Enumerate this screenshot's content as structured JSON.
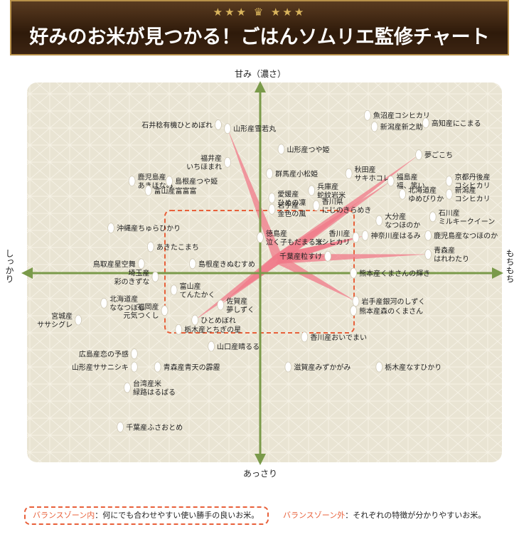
{
  "header": {
    "decoration": "★★★ ♛ ★★★",
    "title": "好みのお米が見つかる！ごはんソムリエ監修チャート"
  },
  "axes": {
    "top": "甘み（濃さ）",
    "bottom": "あっさり",
    "left": "しっかり",
    "right": "もちもち"
  },
  "legend": {
    "inside_key": "バランスゾーン内",
    "inside_text": "：何にでも合わせやすい使い勝手の良いお米。",
    "outside_key": "バランスゾーン外",
    "outside_text": "：それぞれの特徴が分かりやすいお米。"
  },
  "colors": {
    "x_axis": "#7a9a4a",
    "y_axis": "#7a9a4a",
    "balance_zone": "#e8603a",
    "ray": "#f07a88",
    "bg": "#e9e4d3",
    "header": "#3a220e"
  },
  "chart_data": {
    "type": "scatter",
    "x_label_left": "しっかり",
    "x_label_right": "もちもち",
    "y_label_top": "甘み（濃さ）",
    "y_label_bottom": "あっさり",
    "xlim": [
      -10,
      10
    ],
    "ylim": [
      -10,
      10
    ],
    "balance_zone": {
      "x": [
        -4.3,
        4.3
      ],
      "y": [
        -3.8,
        2.3
      ]
    },
    "points": [
      {
        "label": "石井稔有機ひとめぼれ",
        "x": -1.8,
        "y": 7.9,
        "label_pos": "left",
        "ray": false
      },
      {
        "label": "山形産雪若丸",
        "x": -1.4,
        "y": 7.7,
        "label_pos": "right",
        "ray": true
      },
      {
        "label": "山形産つや姫",
        "x": 0.9,
        "y": 6.6,
        "label_pos": "right",
        "ray": false
      },
      {
        "label": "福井産\nいちほまれ",
        "x": -1.4,
        "y": 5.9,
        "label_pos": "left",
        "ray": false
      },
      {
        "label": "群馬産小松姫",
        "x": 0.4,
        "y": 5.3,
        "label_pos": "right",
        "ray": false
      },
      {
        "label": "鹿児島産\nあきほなみ",
        "x": -5.5,
        "y": 4.9,
        "label_pos": "right",
        "ray": false
      },
      {
        "label": "島根産つや姫",
        "x": -3.9,
        "y": 4.9,
        "label_pos": "right",
        "ray": false
      },
      {
        "label": "富山産富富富",
        "x": -4.8,
        "y": 4.4,
        "label_pos": "right",
        "ray": false
      },
      {
        "label": "愛媛産\nひめの凜",
        "x": 0.5,
        "y": 4.0,
        "label_pos": "right",
        "ray": false
      },
      {
        "label": "兵庫産\n蛇紋岩米",
        "x": 2.2,
        "y": 4.4,
        "label_pos": "right",
        "ray": false
      },
      {
        "label": "秋田産\nサキホコレ",
        "x": 3.8,
        "y": 5.3,
        "label_pos": "right",
        "ray": false
      },
      {
        "label": "岩手産\n金色の風",
        "x": 0.5,
        "y": 3.4,
        "label_pos": "right",
        "ray": false
      },
      {
        "label": "香川県\nにじのきらめき",
        "x": 2.4,
        "y": 3.6,
        "label_pos": "right",
        "ray": false
      },
      {
        "label": "魚沼産コシヒカリ",
        "x": 4.6,
        "y": 8.4,
        "label_pos": "right",
        "ray": false
      },
      {
        "label": "新潟産新之助",
        "x": 4.9,
        "y": 7.8,
        "label_pos": "right",
        "ray": false
      },
      {
        "label": "高知産にこまる",
        "x": 7.1,
        "y": 8.0,
        "label_pos": "right",
        "ray": false
      },
      {
        "label": "夢ごこち",
        "x": 6.8,
        "y": 6.3,
        "label_pos": "right",
        "ray": true
      },
      {
        "label": "福島産\n福、笑い",
        "x": 5.6,
        "y": 4.9,
        "label_pos": "right",
        "ray": true
      },
      {
        "label": "京都丹後産\nコシヒカリ",
        "x": 8.1,
        "y": 4.9,
        "label_pos": "right",
        "ray": false
      },
      {
        "label": "北海道産\nゆめぴりか",
        "x": 6.1,
        "y": 4.2,
        "label_pos": "right",
        "ray": false
      },
      {
        "label": "新潟産\nコシヒカリ",
        "x": 8.1,
        "y": 4.2,
        "label_pos": "right",
        "ray": false
      },
      {
        "label": "大分産\nなつほのか",
        "x": 5.1,
        "y": 2.8,
        "label_pos": "right",
        "ray": false
      },
      {
        "label": "石川産\nミルキークイーン",
        "x": 7.4,
        "y": 3.0,
        "label_pos": "right",
        "ray": false
      },
      {
        "label": "沖縄産ちゅらひかり",
        "x": -6.4,
        "y": 2.4,
        "label_pos": "right",
        "ray": false
      },
      {
        "label": "徳島産\n泣く子もだまる米",
        "x": 0.0,
        "y": 1.9,
        "label_pos": "right",
        "ray": false
      },
      {
        "label": "香川産\nコシヒカリ",
        "x": 4.1,
        "y": 1.9,
        "label_pos": "left",
        "ray": true
      },
      {
        "label": "神奈川産はるみ",
        "x": 4.5,
        "y": 2.0,
        "label_pos": "right",
        "ray": true
      },
      {
        "label": "鹿児島産なつほのか",
        "x": 7.2,
        "y": 2.0,
        "label_pos": "right",
        "ray": false
      },
      {
        "label": "あきたこまち",
        "x": -4.7,
        "y": 1.4,
        "label_pos": "right",
        "ray": false
      },
      {
        "label": "青森産\nはれわたり",
        "x": 7.2,
        "y": 1.0,
        "label_pos": "right",
        "ray": true
      },
      {
        "label": "千葉産粒すけ",
        "x": 2.9,
        "y": 0.9,
        "label_pos": "left",
        "ray": true
      },
      {
        "label": "鳥取産星空舞",
        "x": -5.1,
        "y": 0.5,
        "label_pos": "left",
        "ray": false
      },
      {
        "label": "島根産きぬむすめ",
        "x": -2.9,
        "y": 0.5,
        "label_pos": "right",
        "ray": false
      },
      {
        "label": "熊本産くまさんの輝き",
        "x": 4.0,
        "y": 0.0,
        "label_pos": "right",
        "ray": false
      },
      {
        "label": "埼玉産\n彩のきずな",
        "x": -4.5,
        "y": -0.2,
        "label_pos": "left",
        "ray": false
      },
      {
        "label": "富山産\nてんたかく",
        "x": -3.7,
        "y": -0.9,
        "label_pos": "right",
        "ray": false
      },
      {
        "label": "北海道産\nななつぼし",
        "x": -6.7,
        "y": -1.6,
        "label_pos": "right",
        "ray": false
      },
      {
        "label": "佐賀産\n夢しずく",
        "x": -1.7,
        "y": -1.7,
        "label_pos": "right",
        "ray": true
      },
      {
        "label": "岩手産銀河のしずく",
        "x": 4.1,
        "y": -1.5,
        "label_pos": "right",
        "ray": true
      },
      {
        "label": "福岡産\n元気つくし",
        "x": -4.1,
        "y": -2.0,
        "label_pos": "left",
        "ray": false
      },
      {
        "label": "宮城産\nササシグレ",
        "x": -7.8,
        "y": -2.5,
        "label_pos": "left",
        "ray": false
      },
      {
        "label": "熊本産森のくまさん",
        "x": 4.0,
        "y": -2.0,
        "label_pos": "right",
        "ray": false
      },
      {
        "label": "ひとめぼれ",
        "x": -2.8,
        "y": -2.5,
        "label_pos": "right",
        "ray": true
      },
      {
        "label": "栃木産とちぎの星",
        "x": -3.5,
        "y": -3.0,
        "label_pos": "right",
        "ray": false
      },
      {
        "label": "香川産おいでまい",
        "x": 1.9,
        "y": -3.4,
        "label_pos": "right",
        "ray": false
      },
      {
        "label": "山口産晴るる",
        "x": -2.1,
        "y": -3.9,
        "label_pos": "right",
        "ray": false
      },
      {
        "label": "広島産恋の予感",
        "x": -5.4,
        "y": -4.3,
        "label_pos": "left",
        "ray": false
      },
      {
        "label": "山形産ササニシキ",
        "x": -5.4,
        "y": -5.0,
        "label_pos": "left",
        "ray": false
      },
      {
        "label": "青森産青天の霹靂",
        "x": -4.4,
        "y": -5.0,
        "label_pos": "right",
        "ray": false
      },
      {
        "label": "滋賀産みずかがみ",
        "x": 1.2,
        "y": -5.0,
        "label_pos": "right",
        "ray": false
      },
      {
        "label": "栃木産なすひかり",
        "x": 5.1,
        "y": -5.0,
        "label_pos": "right",
        "ray": false
      },
      {
        "label": "台湾産米\n緑路はるばる",
        "x": -5.7,
        "y": -6.1,
        "label_pos": "right",
        "ray": false
      },
      {
        "label": "千葉産ふさおとめ",
        "x": -6.0,
        "y": -8.2,
        "label_pos": "right",
        "ray": false
      }
    ]
  }
}
